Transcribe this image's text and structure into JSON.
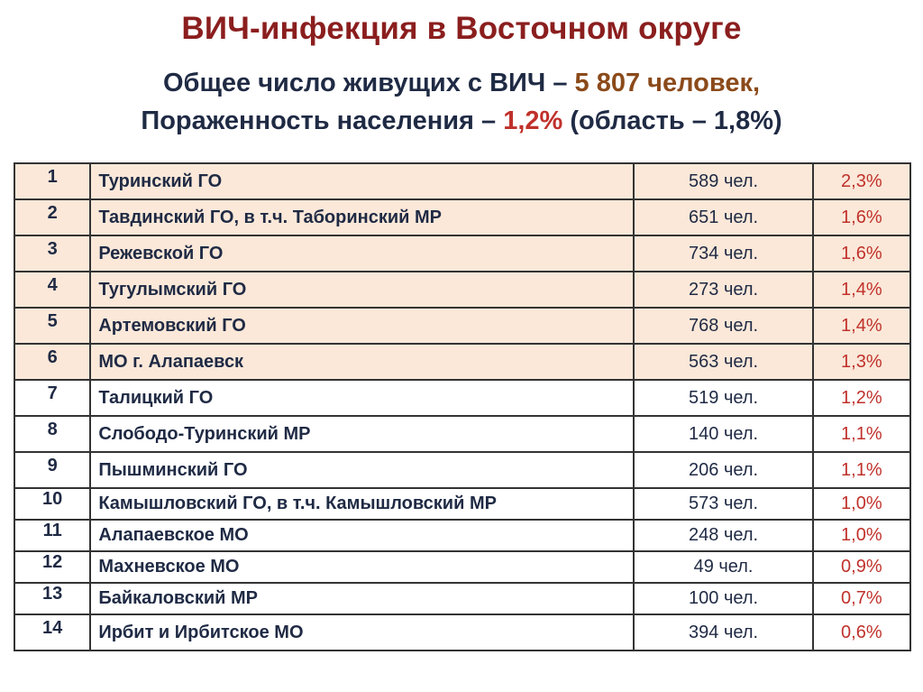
{
  "title": "ВИЧ-инфекция в Восточном округе",
  "subtitle": {
    "line1_prefix": "Общее число живущих с ВИЧ – ",
    "line1_value": "5 807 человек,",
    "line2_prefix": "Пораженность населения – ",
    "line2_value": "1,2%",
    "line2_suffix": " (область – 1,8%)"
  },
  "rows": [
    {
      "num": "1",
      "name": "Туринский ГО",
      "count": "589 чел.",
      "pct": "2,3%"
    },
    {
      "num": "2",
      "name": "Тавдинский ГО, в т.ч. Таборинский МР",
      "count": "651 чел.",
      "pct": "1,6%"
    },
    {
      "num": "3",
      "name": "Режевской ГО",
      "count": "734 чел.",
      "pct": "1,6%"
    },
    {
      "num": "4",
      "name": "Тугулымский ГО",
      "count": "273 чел.",
      "pct": "1,4%"
    },
    {
      "num": "5",
      "name": "Артемовский ГО",
      "count": "768 чел.",
      "pct": "1,4%"
    },
    {
      "num": "6",
      "name": "МО г. Алапаевск",
      "count": "563 чел.",
      "pct": "1,3%"
    },
    {
      "num": "7",
      "name": "Талицкий ГО",
      "count": "519 чел.",
      "pct": "1,2%"
    },
    {
      "num": "8",
      "name": "Слободо-Туринский МР",
      "count": "140 чел.",
      "pct": "1,1%"
    },
    {
      "num": "9",
      "name": "Пышминский ГО",
      "count": "206 чел.",
      "pct": "1,1%"
    },
    {
      "num": "10",
      "name": "Камышловский ГО, в т.ч. Камышловский МР",
      "count": "573 чел.",
      "pct": "1,0%"
    },
    {
      "num": "11",
      "name": "Алапаевское МО",
      "count": "248 чел.",
      "pct": "1,0%"
    },
    {
      "num": "12",
      "name": "Махневское МО",
      "count": "49 чел.",
      "pct": "0,9%"
    },
    {
      "num": "13",
      "name": "Байкаловский МР",
      "count": "100 чел.",
      "pct": "0,7%"
    },
    {
      "num": "14",
      "name": "Ирбит и Ирбитское МО",
      "count": "394 чел.",
      "pct": "0,6%"
    }
  ],
  "colors": {
    "title": "#8B1E1E",
    "text": "#1f2a44",
    "highlight_value": "#8B4A1A",
    "percent": "#c0312b",
    "row_highlight": "#fbe8d9"
  }
}
